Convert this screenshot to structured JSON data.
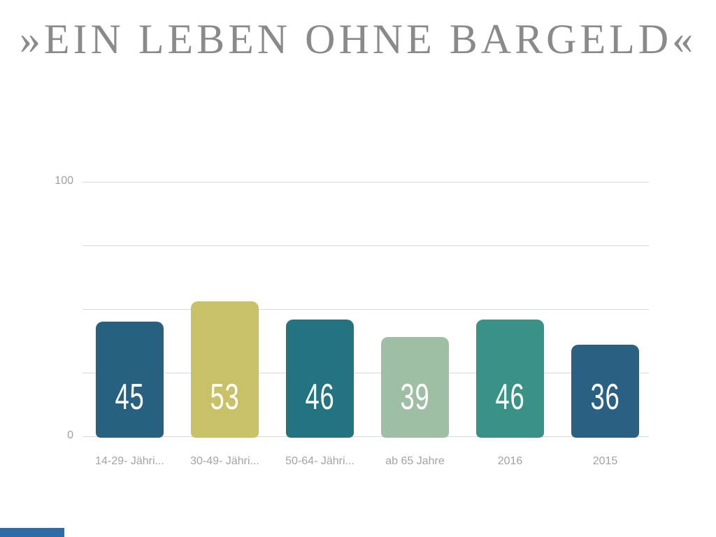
{
  "title": "»EIN LEBEN OHNE BARGELD«",
  "axis": {
    "y_max_label": "100",
    "y_min_label": "0"
  },
  "accent": {
    "bottom_bar_color": "#2d6ca7"
  },
  "chart_data": {
    "type": "bar",
    "title": "»EIN LEBEN OHNE BARGELD«",
    "categories": [
      "14-29- Jähri...",
      "30-49- Jähri...",
      "50-64- Jähri...",
      "ab 65 Jahre",
      "2016",
      "2015"
    ],
    "values": [
      45,
      53,
      46,
      39,
      46,
      36
    ],
    "bar_colors": [
      "#28607f",
      "#c9c168",
      "#247380",
      "#9ebfa3",
      "#3a9286",
      "#2a6182"
    ],
    "value_label_color": "#ffffff",
    "xlabel": "",
    "ylabel": "",
    "ylim": [
      0,
      100
    ],
    "yticks": [
      0,
      100
    ],
    "gridline_values": [
      0,
      25,
      50,
      75,
      100
    ],
    "grid": true,
    "legend": false,
    "background": "#ffffff",
    "gridline_color": "#d9d9d9",
    "title_color": "#8a8a8a",
    "tick_label_color": "#a0a0a0"
  }
}
